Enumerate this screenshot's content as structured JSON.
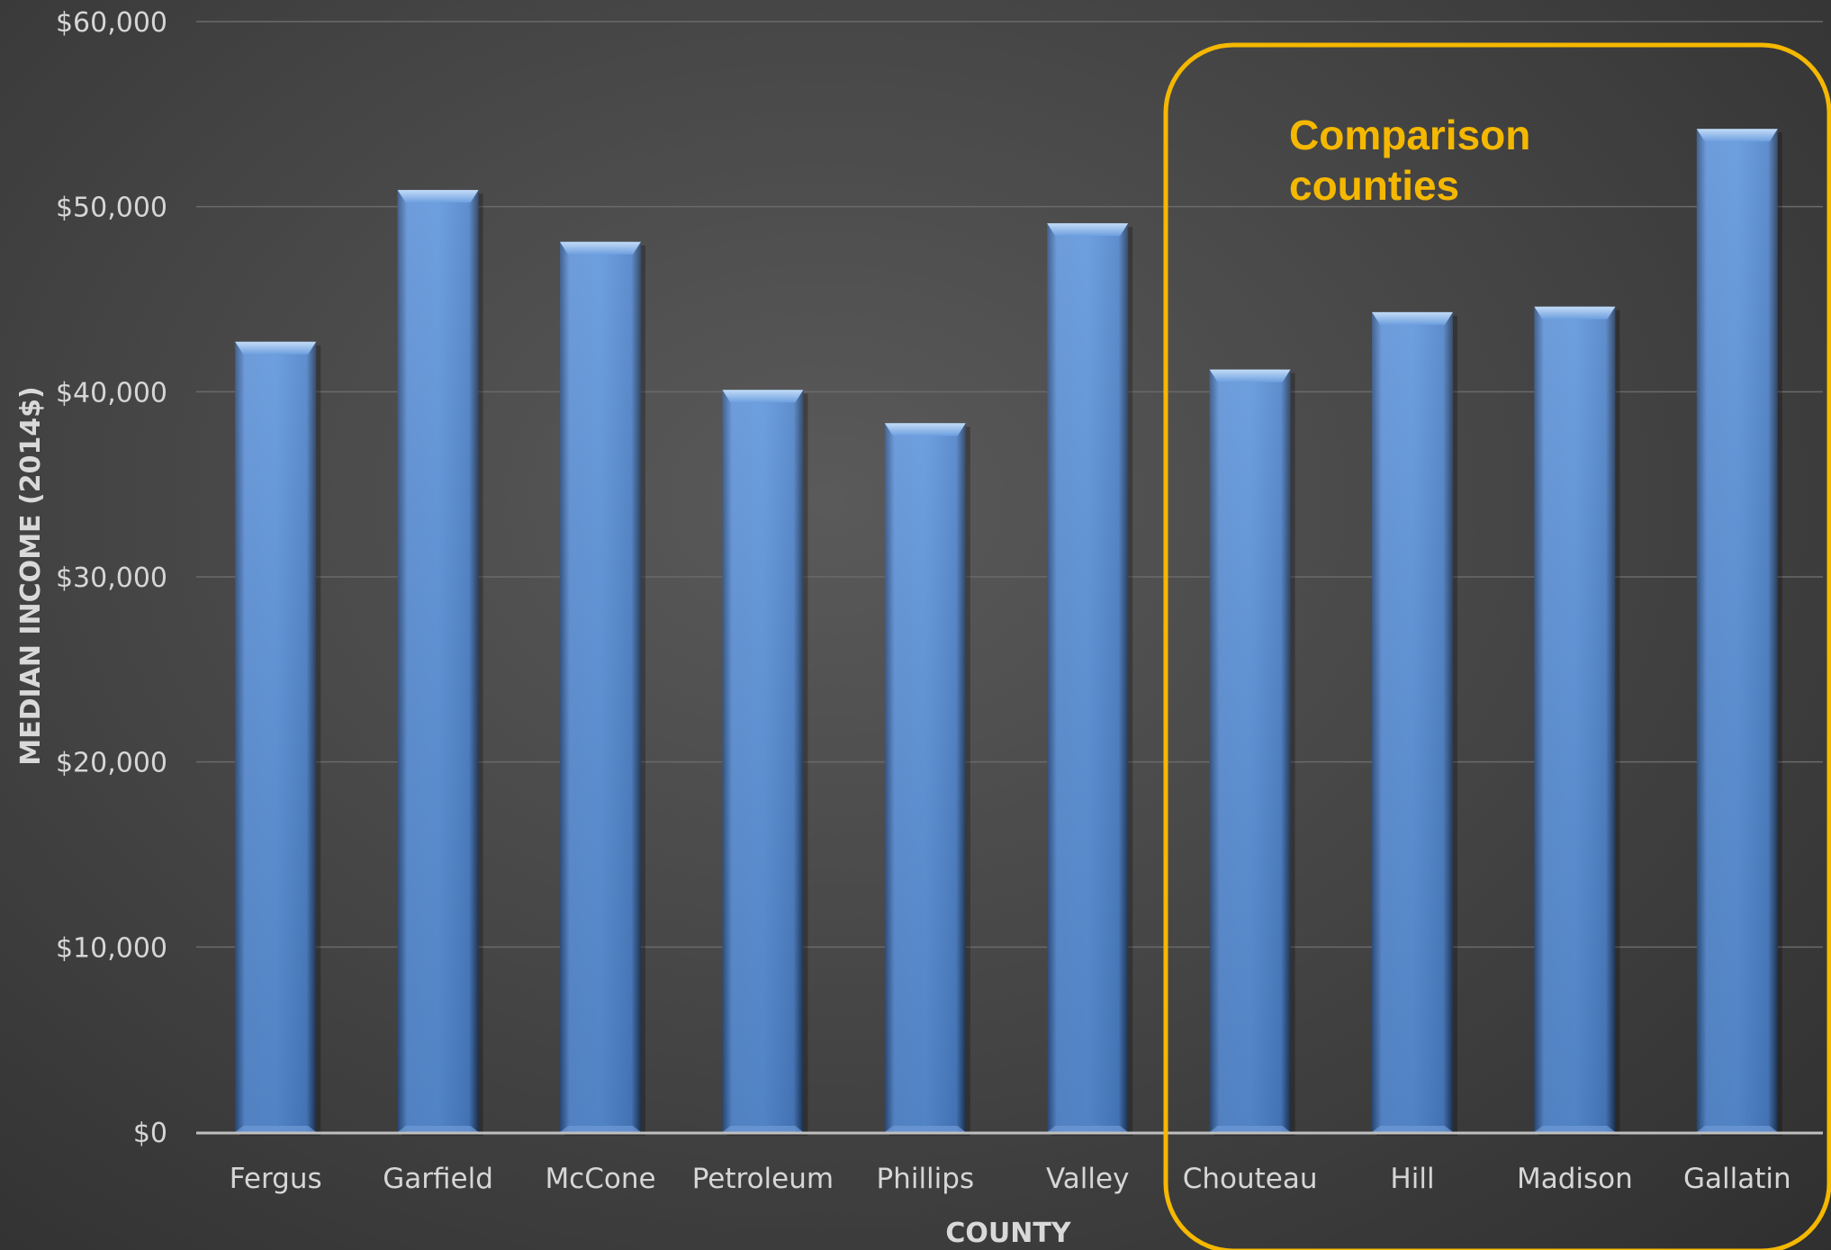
{
  "chart_data": {
    "type": "bar",
    "categories": [
      "Fergus",
      "Garfield",
      "McCone",
      "Petroleum",
      "Phillips",
      "Valley",
      "Chouteau",
      "Hill",
      "Madison",
      "Gallatin"
    ],
    "values": [
      42700,
      50900,
      48100,
      40100,
      38300,
      49100,
      41200,
      44300,
      44600,
      54200
    ],
    "xlabel": "COUNTY",
    "ylabel": "MEDIAN INCOME (2014$)",
    "ylim": [
      0,
      60000
    ],
    "yticks": [
      0,
      10000,
      20000,
      30000,
      40000,
      50000,
      60000
    ],
    "ytick_labels": [
      "$0",
      "$10,000",
      "$20,000",
      "$30,000",
      "$40,000",
      "$50,000",
      "$60,000"
    ],
    "grid": true,
    "legend": "none",
    "annotation": {
      "text_lines": [
        "Comparison",
        "counties"
      ],
      "highlighted_categories": [
        "Chouteau",
        "Hill",
        "Madison",
        "Gallatin"
      ]
    }
  },
  "colors": {
    "bar_light": "#79a6e2",
    "bar_mid": "#4e86cf",
    "bar_dark": "#3a6fb6",
    "gridline": "#6a6a6a",
    "axis_line": "#bfbfbf",
    "annotation": "#f5b800"
  }
}
